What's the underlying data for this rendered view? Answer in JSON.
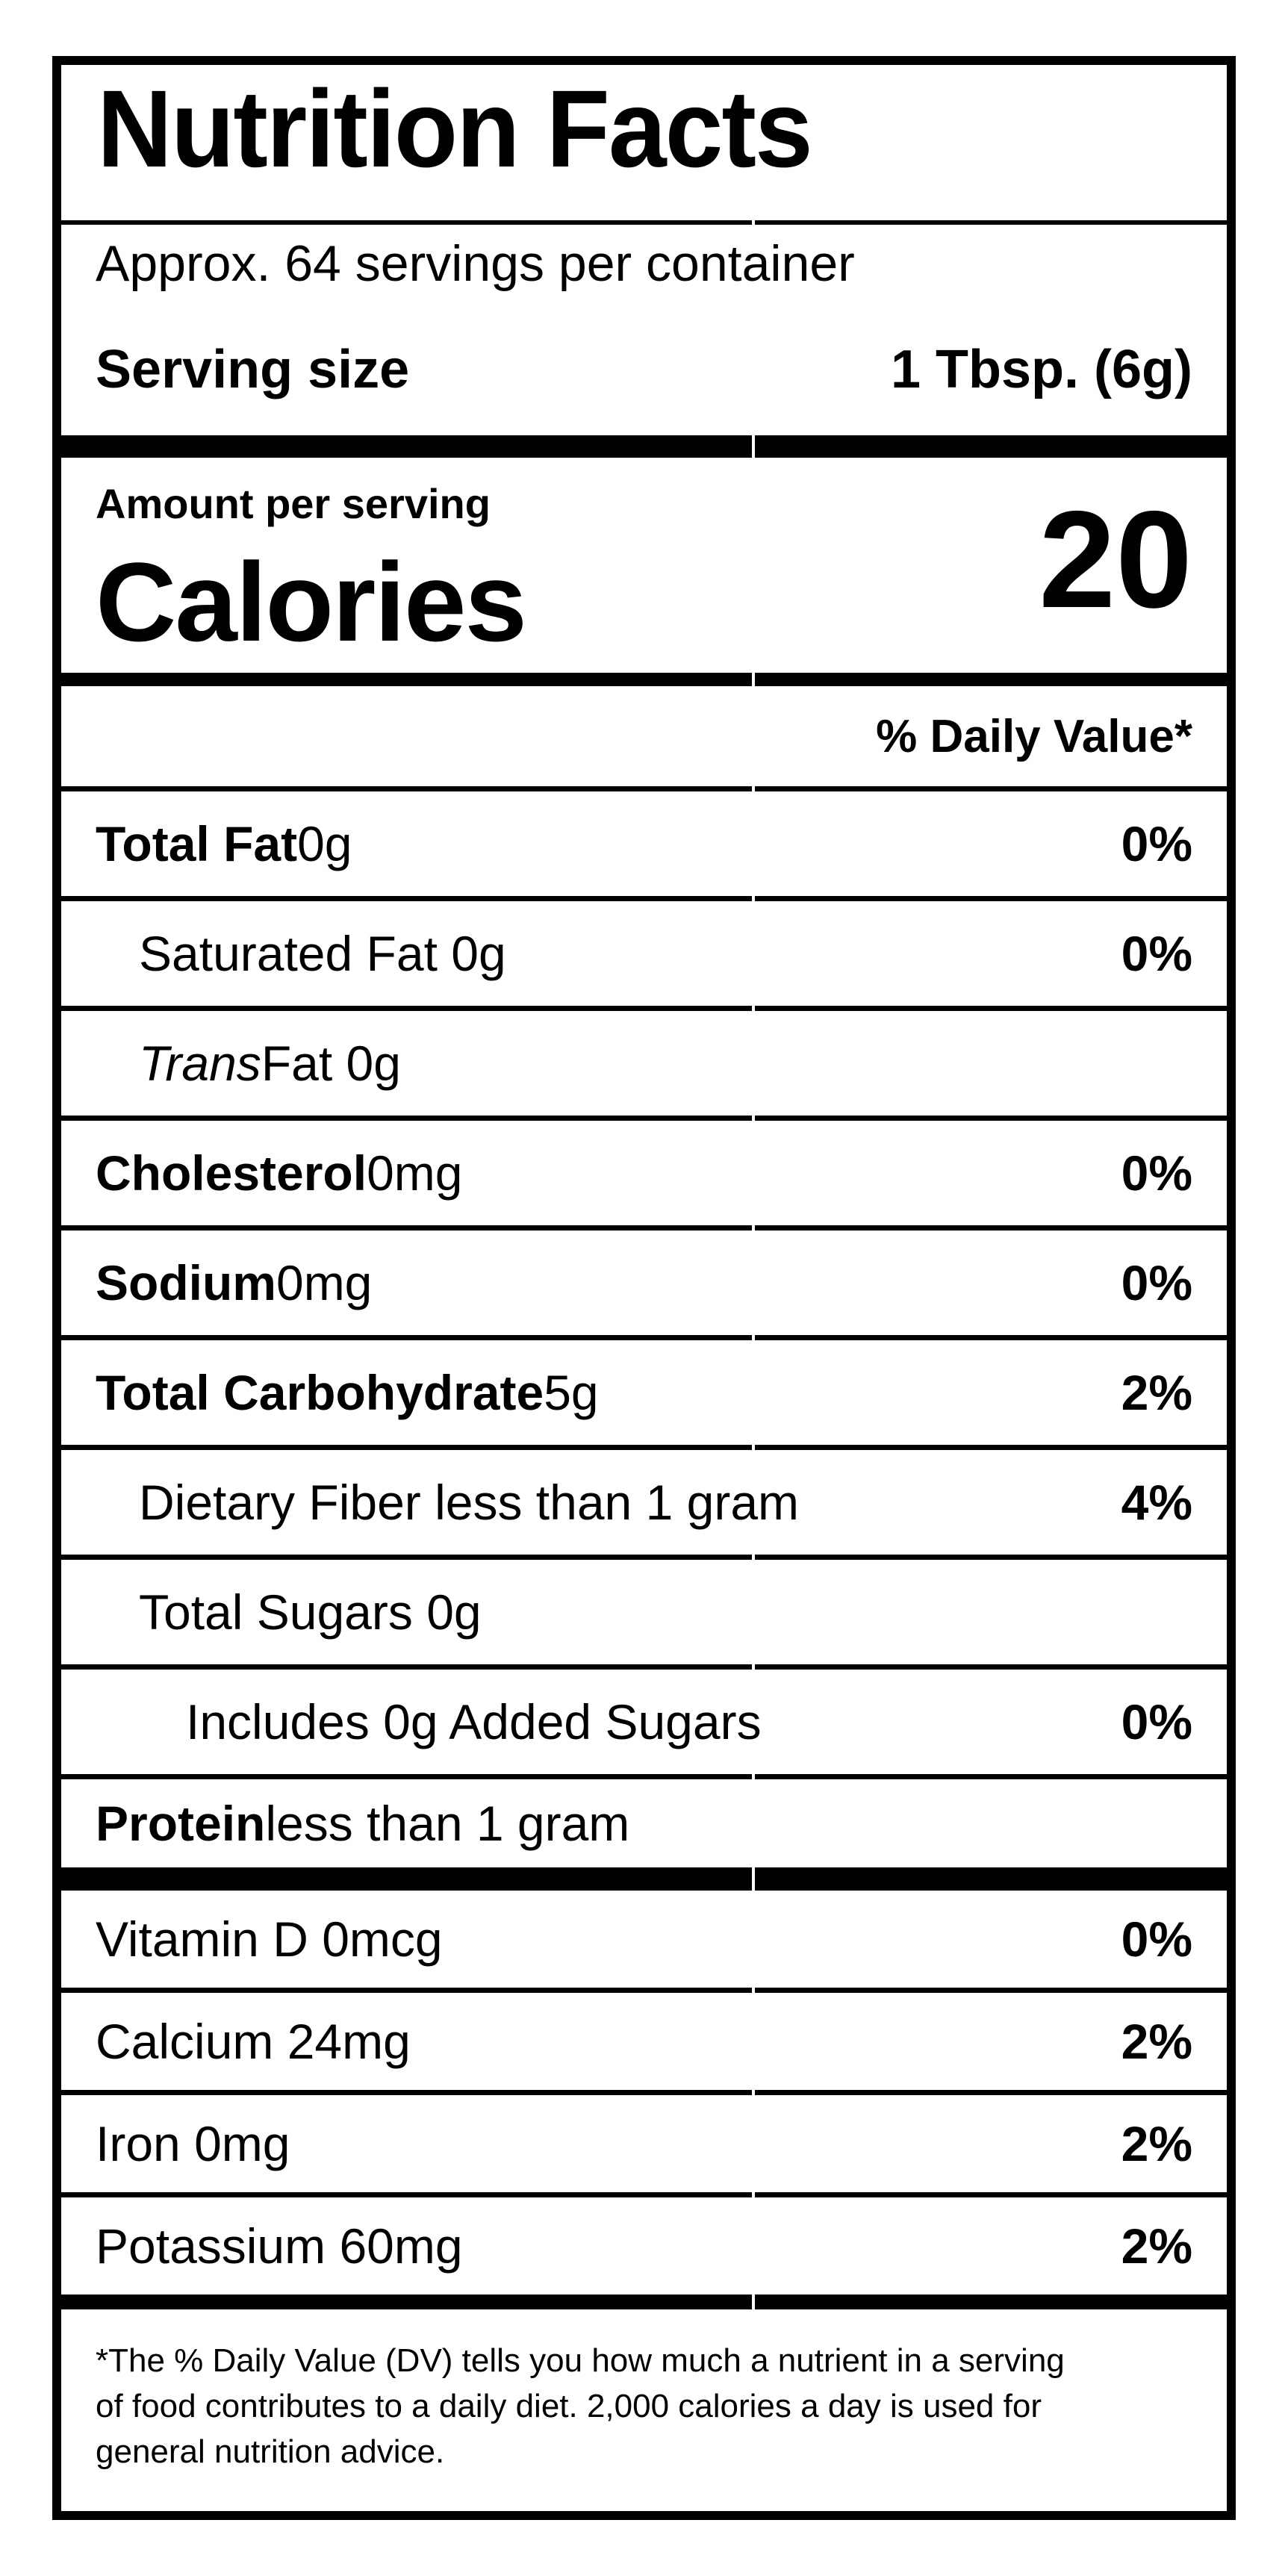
{
  "label": {
    "title": "Nutrition Facts",
    "servings_per_container": "Approx. 64 servings per container",
    "serving_size": {
      "label": "Serving size",
      "value": "1 Tbsp. (6g)"
    },
    "amount_per_serving": "Amount per serving",
    "calories": {
      "label": "Calories",
      "value": "20"
    },
    "daily_value_header": "% Daily Value*",
    "nutrients": [
      {
        "bold": "Total Fat",
        "italic": "",
        "rest": " 0g",
        "pct": "0%"
      },
      {
        "bold": "",
        "italic": "",
        "rest": "Saturated Fat 0g",
        "pct": "0%"
      },
      {
        "bold": "",
        "italic": "Trans",
        "rest": " Fat 0g",
        "pct": ""
      },
      {
        "bold": "Cholesterol",
        "italic": "",
        "rest": " 0mg",
        "pct": "0%"
      },
      {
        "bold": "Sodium",
        "italic": "",
        "rest": " 0mg",
        "pct": "0%"
      },
      {
        "bold": "Total Carbohydrate",
        "italic": "",
        "rest": " 5g",
        "pct": "2%"
      },
      {
        "bold": "",
        "italic": "",
        "rest": "Dietary Fiber less than 1 gram",
        "pct": "4%"
      },
      {
        "bold": "",
        "italic": "",
        "rest": "Total Sugars 0g",
        "pct": ""
      },
      {
        "bold": "",
        "italic": "",
        "rest": "Includes 0g Added Sugars",
        "pct": "0%"
      },
      {
        "bold": "Protein",
        "italic": "",
        "rest": " less than 1 gram",
        "pct": ""
      }
    ],
    "vitamins": [
      {
        "name": "Vitamin D 0mcg",
        "pct": "0%"
      },
      {
        "name": "Calcium 24mg",
        "pct": "2%"
      },
      {
        "name": "Iron 0mg",
        "pct": "2%"
      },
      {
        "name": "Potassium 60mg",
        "pct": "2%"
      }
    ],
    "footnote_lines": [
      "*The % Daily Value (DV) tells you how much a nutrient in a serving",
      "of food contributes to a daily diet. 2,000 calories a day is used for",
      "general nutrition advice."
    ],
    "colors": {
      "ink": "#000000",
      "paper": "#ffffff"
    }
  }
}
